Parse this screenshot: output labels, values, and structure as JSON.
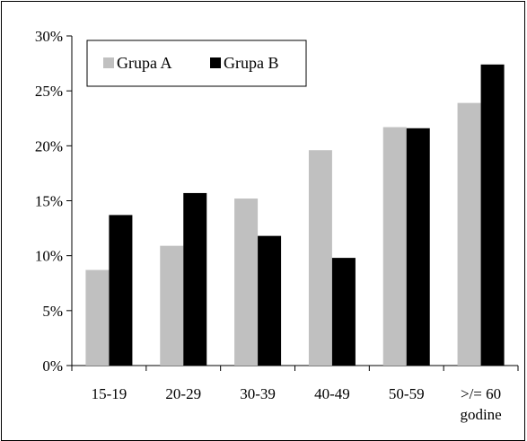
{
  "chart_data": {
    "type": "bar",
    "categories": [
      "15-19",
      "20-29",
      "30-39",
      "40-49",
      "50-59",
      ">/= 60 godine"
    ],
    "category_lines": [
      [
        "15-19"
      ],
      [
        "20-29"
      ],
      [
        "30-39"
      ],
      [
        "40-49"
      ],
      [
        "50-59"
      ],
      [
        ">/= 60",
        "godine"
      ]
    ],
    "series": [
      {
        "name": "Grupa A",
        "values": [
          8.7,
          10.9,
          15.2,
          19.6,
          21.7,
          23.9
        ],
        "color": "#c0c0c0"
      },
      {
        "name": "Grupa B",
        "values": [
          13.7,
          15.7,
          11.8,
          9.8,
          21.6,
          27.4
        ],
        "color": "#000000"
      }
    ],
    "ylim": [
      0,
      30
    ],
    "yticks": [
      "0%",
      "5%",
      "10%",
      "15%",
      "20%",
      "25%",
      "30%"
    ],
    "ytick_values": [
      0,
      5,
      10,
      15,
      20,
      25,
      30
    ],
    "grid": false,
    "legend_position": "top-left",
    "title": "",
    "xlabel": "",
    "ylabel": ""
  }
}
